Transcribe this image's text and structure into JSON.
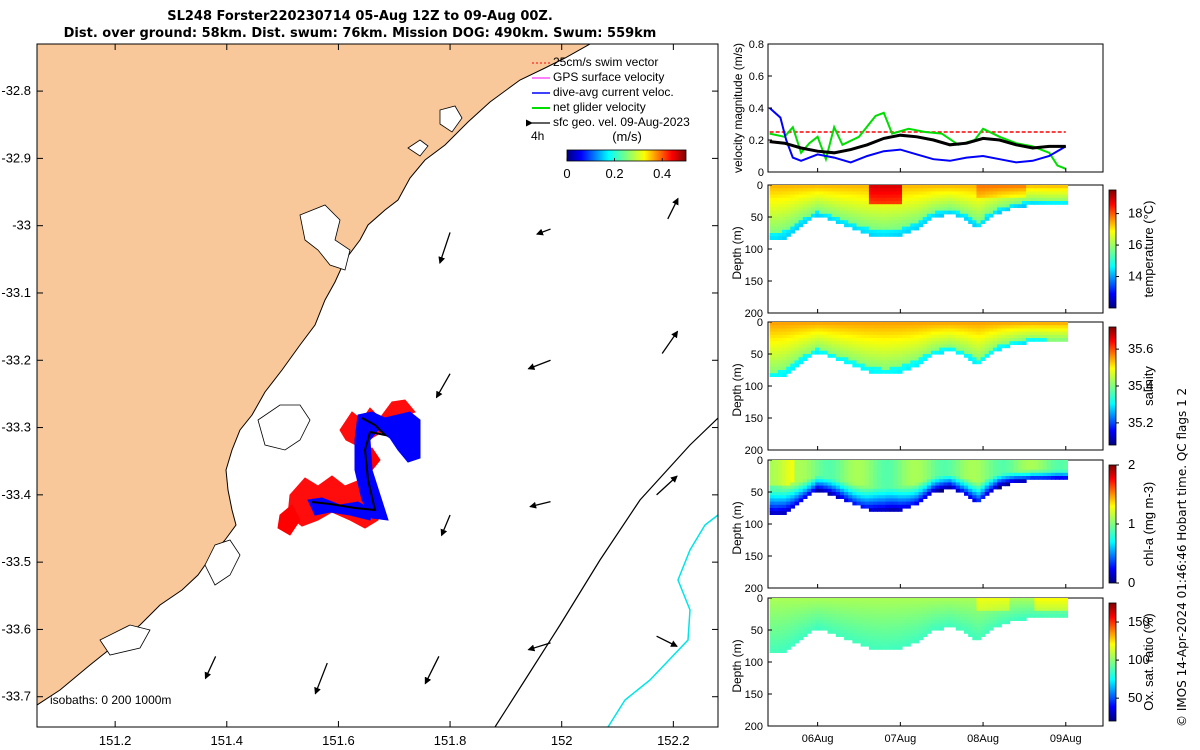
{
  "title_line1": "SL248 Forster220230714 05-Aug 12Z to 09-Aug 00Z.",
  "title_line2": "Dist. over ground: 58km. Dist. swum: 76km. Mission DOG: 490km. Swum: 559km",
  "credit": "© IMOS 14-Apr-2024 01:46:46 Hobart time. QC flags 1  2",
  "colors": {
    "land": "#f9c89a",
    "coast": "#000000",
    "swim_vector": "#ff0000",
    "gps_velocity": "#ff00ff",
    "dive_avg": "#0000ff",
    "net_glider": "#00dd00",
    "sfc_geo": "#000000",
    "isobath_200": "#000000",
    "isobath_1000": "#00e5e5"
  },
  "chart_data": [
    {
      "type": "map",
      "xticks": [
        "151.2",
        "151.4",
        "151.6",
        "151.8",
        "152",
        "152.2"
      ],
      "yticks": [
        "-32.8",
        "-32.9",
        "-33",
        "-33.1",
        "-33.2",
        "-33.3",
        "-33.4",
        "-33.5",
        "-33.6",
        "-33.7"
      ],
      "xlim": [
        151.06,
        152.28
      ],
      "ylim": [
        -33.745,
        -32.73
      ],
      "legend": {
        "items": [
          "25cm/s swim vector",
          "GPS surface velocity",
          "dive-avg current veloc.",
          "net glider velocity",
          "sfc geo. vel. 09-Aug-2023"
        ],
        "placement": "top-right"
      },
      "time_label": "4h",
      "colorbar": {
        "label": "(m/s)",
        "ticks": [
          "0",
          "0.2",
          "0.4"
        ],
        "range": [
          0,
          0.5
        ]
      },
      "isobaths_label": "isobaths: 0   200  1000m",
      "geo_vectors": [
        {
          "lon": 151.8,
          "lat": -33.01,
          "u": -0.06,
          "v": -0.18
        },
        {
          "lon": 151.98,
          "lat": -33.005,
          "u": -0.08,
          "v": -0.03
        },
        {
          "lon": 152.19,
          "lat": -32.99,
          "u": 0.06,
          "v": 0.12
        },
        {
          "lon": 151.8,
          "lat": -33.22,
          "u": -0.08,
          "v": -0.14
        },
        {
          "lon": 151.98,
          "lat": -33.2,
          "u": -0.13,
          "v": -0.05
        },
        {
          "lon": 152.18,
          "lat": -33.19,
          "u": 0.09,
          "v": 0.13
        },
        {
          "lon": 151.8,
          "lat": -33.43,
          "u": -0.05,
          "v": -0.12
        },
        {
          "lon": 151.98,
          "lat": -33.41,
          "u": -0.12,
          "v": -0.03
        },
        {
          "lon": 152.17,
          "lat": -33.4,
          "u": 0.12,
          "v": 0.11
        },
        {
          "lon": 151.38,
          "lat": -33.64,
          "u": -0.06,
          "v": -0.13
        },
        {
          "lon": 151.58,
          "lat": -33.65,
          "u": -0.07,
          "v": -0.18
        },
        {
          "lon": 151.78,
          "lat": -33.64,
          "u": -0.08,
          "v": -0.16
        },
        {
          "lon": 151.98,
          "lat": -33.62,
          "u": -0.13,
          "v": -0.04
        },
        {
          "lon": 152.17,
          "lat": -33.61,
          "u": 0.12,
          "v": -0.06
        }
      ]
    },
    {
      "type": "line",
      "ylabel": "velocity magnitude (m/s)",
      "ylim": [
        0,
        0.8
      ],
      "yticks": [
        "0",
        "0.2",
        "0.4",
        "0.6",
        "0.8"
      ],
      "xlim_day": [
        5.4,
        9.45
      ],
      "series": [
        {
          "color": "#ff0000",
          "style": "dashed",
          "x": [
            5.42,
            9.0
          ],
          "y": [
            0.25,
            0.25
          ]
        },
        {
          "color": "#00dd00",
          "style": "solid",
          "x": [
            5.42,
            5.6,
            5.7,
            5.8,
            5.9,
            6.0,
            6.1,
            6.2,
            6.3,
            6.5,
            6.7,
            6.8,
            6.9,
            7.1,
            7.3,
            7.5,
            7.7,
            7.9,
            8.0,
            8.2,
            8.4,
            8.6,
            8.8,
            8.9,
            9.0
          ],
          "y": [
            0.24,
            0.22,
            0.28,
            0.12,
            0.18,
            0.22,
            0.08,
            0.28,
            0.17,
            0.22,
            0.35,
            0.37,
            0.24,
            0.27,
            0.25,
            0.24,
            0.17,
            0.2,
            0.27,
            0.22,
            0.18,
            0.16,
            0.12,
            0.04,
            0.02
          ]
        },
        {
          "color": "#0000ff",
          "style": "solid",
          "x": [
            5.42,
            5.55,
            5.62,
            5.7,
            5.8,
            6.0,
            6.2,
            6.4,
            6.6,
            6.8,
            7.0,
            7.2,
            7.4,
            7.6,
            7.8,
            8.0,
            8.2,
            8.4,
            8.6,
            8.8,
            9.0
          ],
          "y": [
            0.4,
            0.34,
            0.2,
            0.09,
            0.07,
            0.11,
            0.09,
            0.06,
            0.1,
            0.13,
            0.14,
            0.11,
            0.08,
            0.07,
            0.09,
            0.1,
            0.08,
            0.06,
            0.07,
            0.1,
            0.16
          ]
        },
        {
          "color": "#000000",
          "style": "solid",
          "x": [
            5.42,
            5.6,
            5.8,
            6.0,
            6.2,
            6.4,
            6.6,
            6.8,
            7.0,
            7.2,
            7.4,
            7.6,
            7.8,
            8.0,
            8.2,
            8.4,
            8.6,
            8.8,
            9.0
          ],
          "y": [
            0.19,
            0.18,
            0.15,
            0.13,
            0.12,
            0.14,
            0.17,
            0.21,
            0.23,
            0.22,
            0.2,
            0.17,
            0.18,
            0.21,
            0.2,
            0.17,
            0.15,
            0.16,
            0.16
          ]
        }
      ]
    },
    {
      "type": "heatmap",
      "panels": [
        {
          "label": "temperature (°C)",
          "ticks": [
            "14",
            "16",
            "18"
          ],
          "tickvals": [
            14,
            16,
            18
          ],
          "range": [
            12,
            19.5
          ]
        },
        {
          "label": "salinity",
          "ticks": [
            "35.2",
            "35.4",
            "35.6"
          ],
          "tickvals": [
            35.2,
            35.4,
            35.6
          ],
          "range": [
            35.08,
            35.72
          ]
        },
        {
          "label": "chl-a (mg m-3)",
          "ticks": [
            "0",
            "1",
            "2"
          ],
          "tickvals": [
            0,
            1,
            2
          ],
          "range": [
            0,
            2
          ]
        },
        {
          "label": "Ox. sat. ratio (%)",
          "ticks": [
            "50",
            "100",
            "150"
          ],
          "tickvals": [
            50,
            100,
            150
          ],
          "range": [
            20,
            175
          ]
        }
      ],
      "ylabel": "Depth (m)",
      "yticks": [
        "0",
        "50",
        "100",
        "150",
        "200"
      ],
      "ylim": [
        0,
        200
      ],
      "xticks": [
        "06Aug",
        "07Aug",
        "08Aug",
        "09Aug"
      ],
      "xtick_days": [
        6,
        7,
        8,
        9
      ],
      "data_xlim_day": [
        5.42,
        9.0
      ],
      "max_depth_profile": {
        "x": [
          5.42,
          5.5,
          5.6,
          5.8,
          6.0,
          6.2,
          6.4,
          6.6,
          6.8,
          7.0,
          7.2,
          7.4,
          7.6,
          7.8,
          7.95,
          8.05,
          8.2,
          8.4,
          8.6,
          8.8,
          9.0
        ],
        "depth": [
          85,
          85,
          80,
          60,
          45,
          55,
          65,
          75,
          80,
          75,
          65,
          48,
          42,
          52,
          65,
          52,
          40,
          32,
          28,
          30,
          30
        ]
      }
    }
  ]
}
